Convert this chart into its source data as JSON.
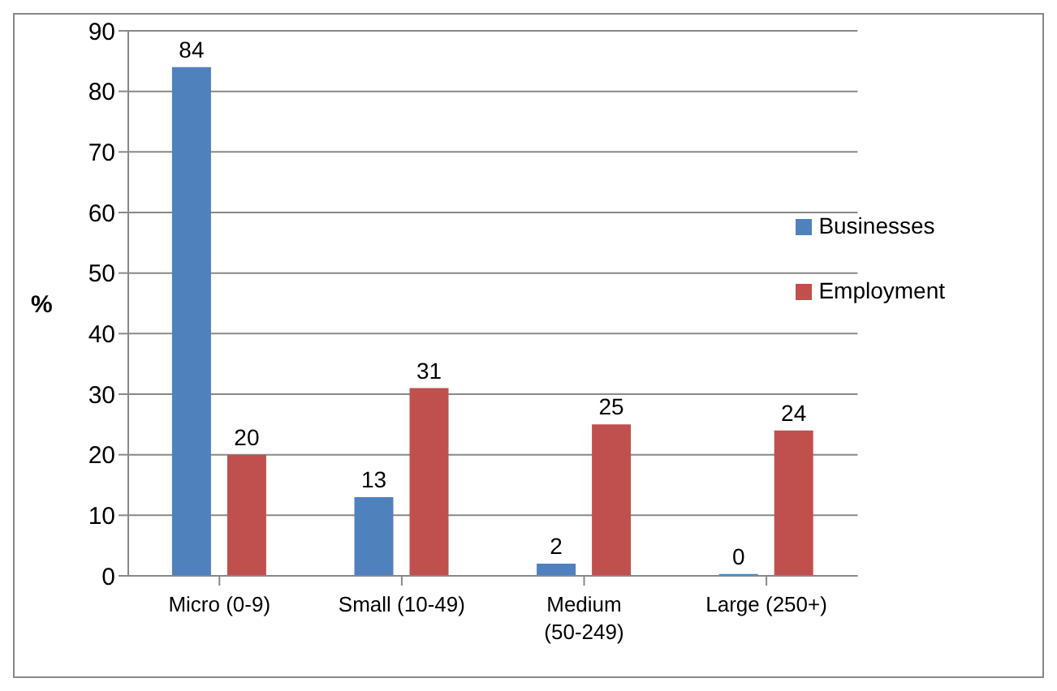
{
  "chart_data": {
    "type": "bar",
    "categories": [
      "Micro (0-9)",
      "Small (10-49)",
      "Medium (50-249)",
      "Large (250+)"
    ],
    "series": [
      {
        "name": "Businesses",
        "color": "#4f81bd",
        "values": [
          84,
          13,
          2,
          0.3
        ],
        "value_labels": [
          "84",
          "13",
          "2",
          "0"
        ]
      },
      {
        "name": "Employment",
        "color": "#c0504d",
        "values": [
          20,
          31,
          25,
          24
        ],
        "value_labels": [
          "20",
          "31",
          "25",
          "24"
        ]
      }
    ],
    "ylabel": "%",
    "ylim": [
      0,
      90
    ],
    "yticks": [
      0,
      10,
      20,
      30,
      40,
      50,
      60,
      70,
      80,
      90
    ],
    "grid": "y",
    "legend": "top right"
  }
}
